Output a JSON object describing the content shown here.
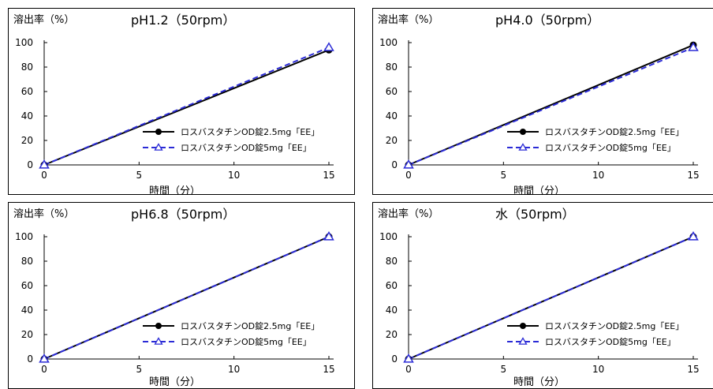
{
  "chart_data": [
    {
      "type": "line",
      "title": "pH1.2（50rpm）",
      "ylabel": "溶出率（%）",
      "xlabel": "時間（分）",
      "xlim": [
        0,
        15
      ],
      "ylim": [
        0,
        100
      ],
      "xticks": [
        "0",
        "5",
        "10",
        "15"
      ],
      "yticks": [
        "0",
        "20",
        "40",
        "60",
        "80",
        "100"
      ],
      "grid": false,
      "legend_position": "bottom-right",
      "series": [
        {
          "name": "ロスバスタチンOD錠2.5mg「EE」",
          "x": [
            0,
            15
          ],
          "y": [
            0,
            94
          ],
          "color": "#000000",
          "marker": "circle",
          "dash": "solid"
        },
        {
          "name": "ロスバスタチンOD錠5mg「EE」",
          "x": [
            0,
            15
          ],
          "y": [
            0,
            96
          ],
          "color": "#2b2bd6",
          "marker": "triangle",
          "dash": "dashed"
        }
      ]
    },
    {
      "type": "line",
      "title": "pH4.0（50rpm）",
      "ylabel": "溶出率（%）",
      "xlabel": "時間（分）",
      "xlim": [
        0,
        15
      ],
      "ylim": [
        0,
        100
      ],
      "xticks": [
        "0",
        "5",
        "10",
        "15"
      ],
      "yticks": [
        "0",
        "20",
        "40",
        "60",
        "80",
        "100"
      ],
      "grid": false,
      "legend_position": "bottom-right",
      "series": [
        {
          "name": "ロスバスタチンOD錠2.5mg「EE」",
          "x": [
            0,
            15
          ],
          "y": [
            0,
            98
          ],
          "color": "#000000",
          "marker": "circle",
          "dash": "solid"
        },
        {
          "name": "ロスバスタチンOD錠5mg「EE」",
          "x": [
            0,
            15
          ],
          "y": [
            0,
            96
          ],
          "color": "#2b2bd6",
          "marker": "triangle",
          "dash": "dashed"
        }
      ]
    },
    {
      "type": "line",
      "title": "pH6.8（50rpm）",
      "ylabel": "溶出率（%）",
      "xlabel": "時間（分）",
      "xlim": [
        0,
        15
      ],
      "ylim": [
        0,
        100
      ],
      "xticks": [
        "0",
        "5",
        "10",
        "15"
      ],
      "yticks": [
        "0",
        "20",
        "40",
        "60",
        "80",
        "100"
      ],
      "grid": false,
      "legend_position": "bottom-right",
      "series": [
        {
          "name": "ロスバスタチンOD錠2.5mg「EE」",
          "x": [
            0,
            15
          ],
          "y": [
            0,
            100
          ],
          "color": "#000000",
          "marker": "circle",
          "dash": "solid"
        },
        {
          "name": "ロスバスタチンOD錠5mg「EE」",
          "x": [
            0,
            15
          ],
          "y": [
            0,
            100
          ],
          "color": "#2b2bd6",
          "marker": "triangle",
          "dash": "dashed"
        }
      ]
    },
    {
      "type": "line",
      "title": "水（50rpm）",
      "ylabel": "溶出率（%）",
      "xlabel": "時間（分）",
      "xlim": [
        0,
        15
      ],
      "ylim": [
        0,
        100
      ],
      "xticks": [
        "0",
        "5",
        "10",
        "15"
      ],
      "yticks": [
        "0",
        "20",
        "40",
        "60",
        "80",
        "100"
      ],
      "grid": false,
      "legend_position": "bottom-right",
      "series": [
        {
          "name": "ロスバスタチンOD錠2.5mg「EE」",
          "x": [
            0,
            15
          ],
          "y": [
            0,
            100
          ],
          "color": "#000000",
          "marker": "circle",
          "dash": "solid"
        },
        {
          "name": "ロスバスタチンOD錠5mg「EE」",
          "x": [
            0,
            15
          ],
          "y": [
            0,
            100
          ],
          "color": "#2b2bd6",
          "marker": "triangle",
          "dash": "dashed"
        }
      ]
    }
  ]
}
